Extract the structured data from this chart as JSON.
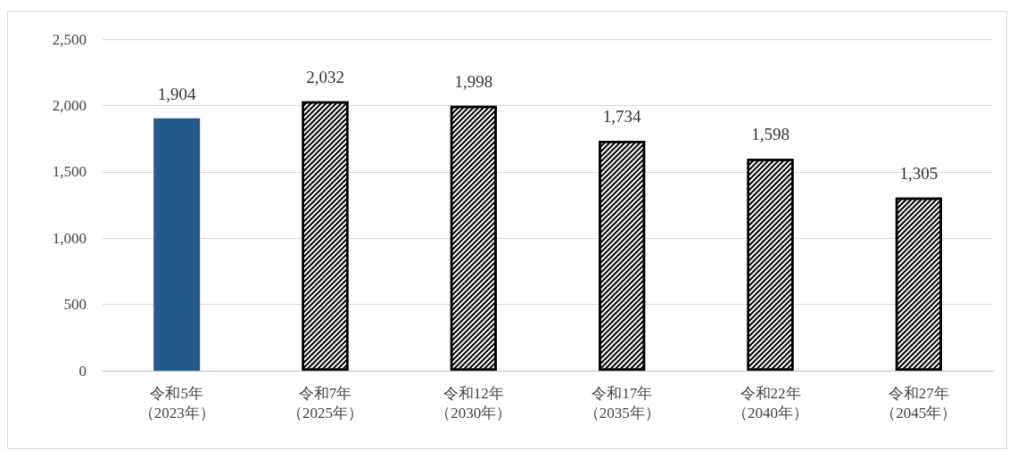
{
  "chart_data": {
    "type": "bar",
    "categories": [
      "令和5年（2023年）",
      "令和7年（2025年）",
      "令和12年（2030年）",
      "令和17年（2035年）",
      "令和22年（2040年）",
      "令和27年（2045年）"
    ],
    "values": [
      1904,
      2032,
      1998,
      1734,
      1598,
      1305
    ],
    "value_labels": [
      "1,904",
      "2,032",
      "1,998",
      "1,734",
      "1,598",
      "1,305"
    ],
    "colors": [
      "#245b8c",
      "#ffffff",
      "#ffffff",
      "#ffffff",
      "#ffffff",
      "#ffffff"
    ],
    "ylim": [
      0,
      2500
    ],
    "yticks": [
      0,
      500,
      {
        "value": 1000,
        "label": "1,000"
      },
      {
        "value": 1500,
        "label": "1,500"
      },
      {
        "value": 2000,
        "label": "2,000"
      },
      {
        "value": 2500,
        "label": "2,500"
      }
    ],
    "grid": "y"
  }
}
